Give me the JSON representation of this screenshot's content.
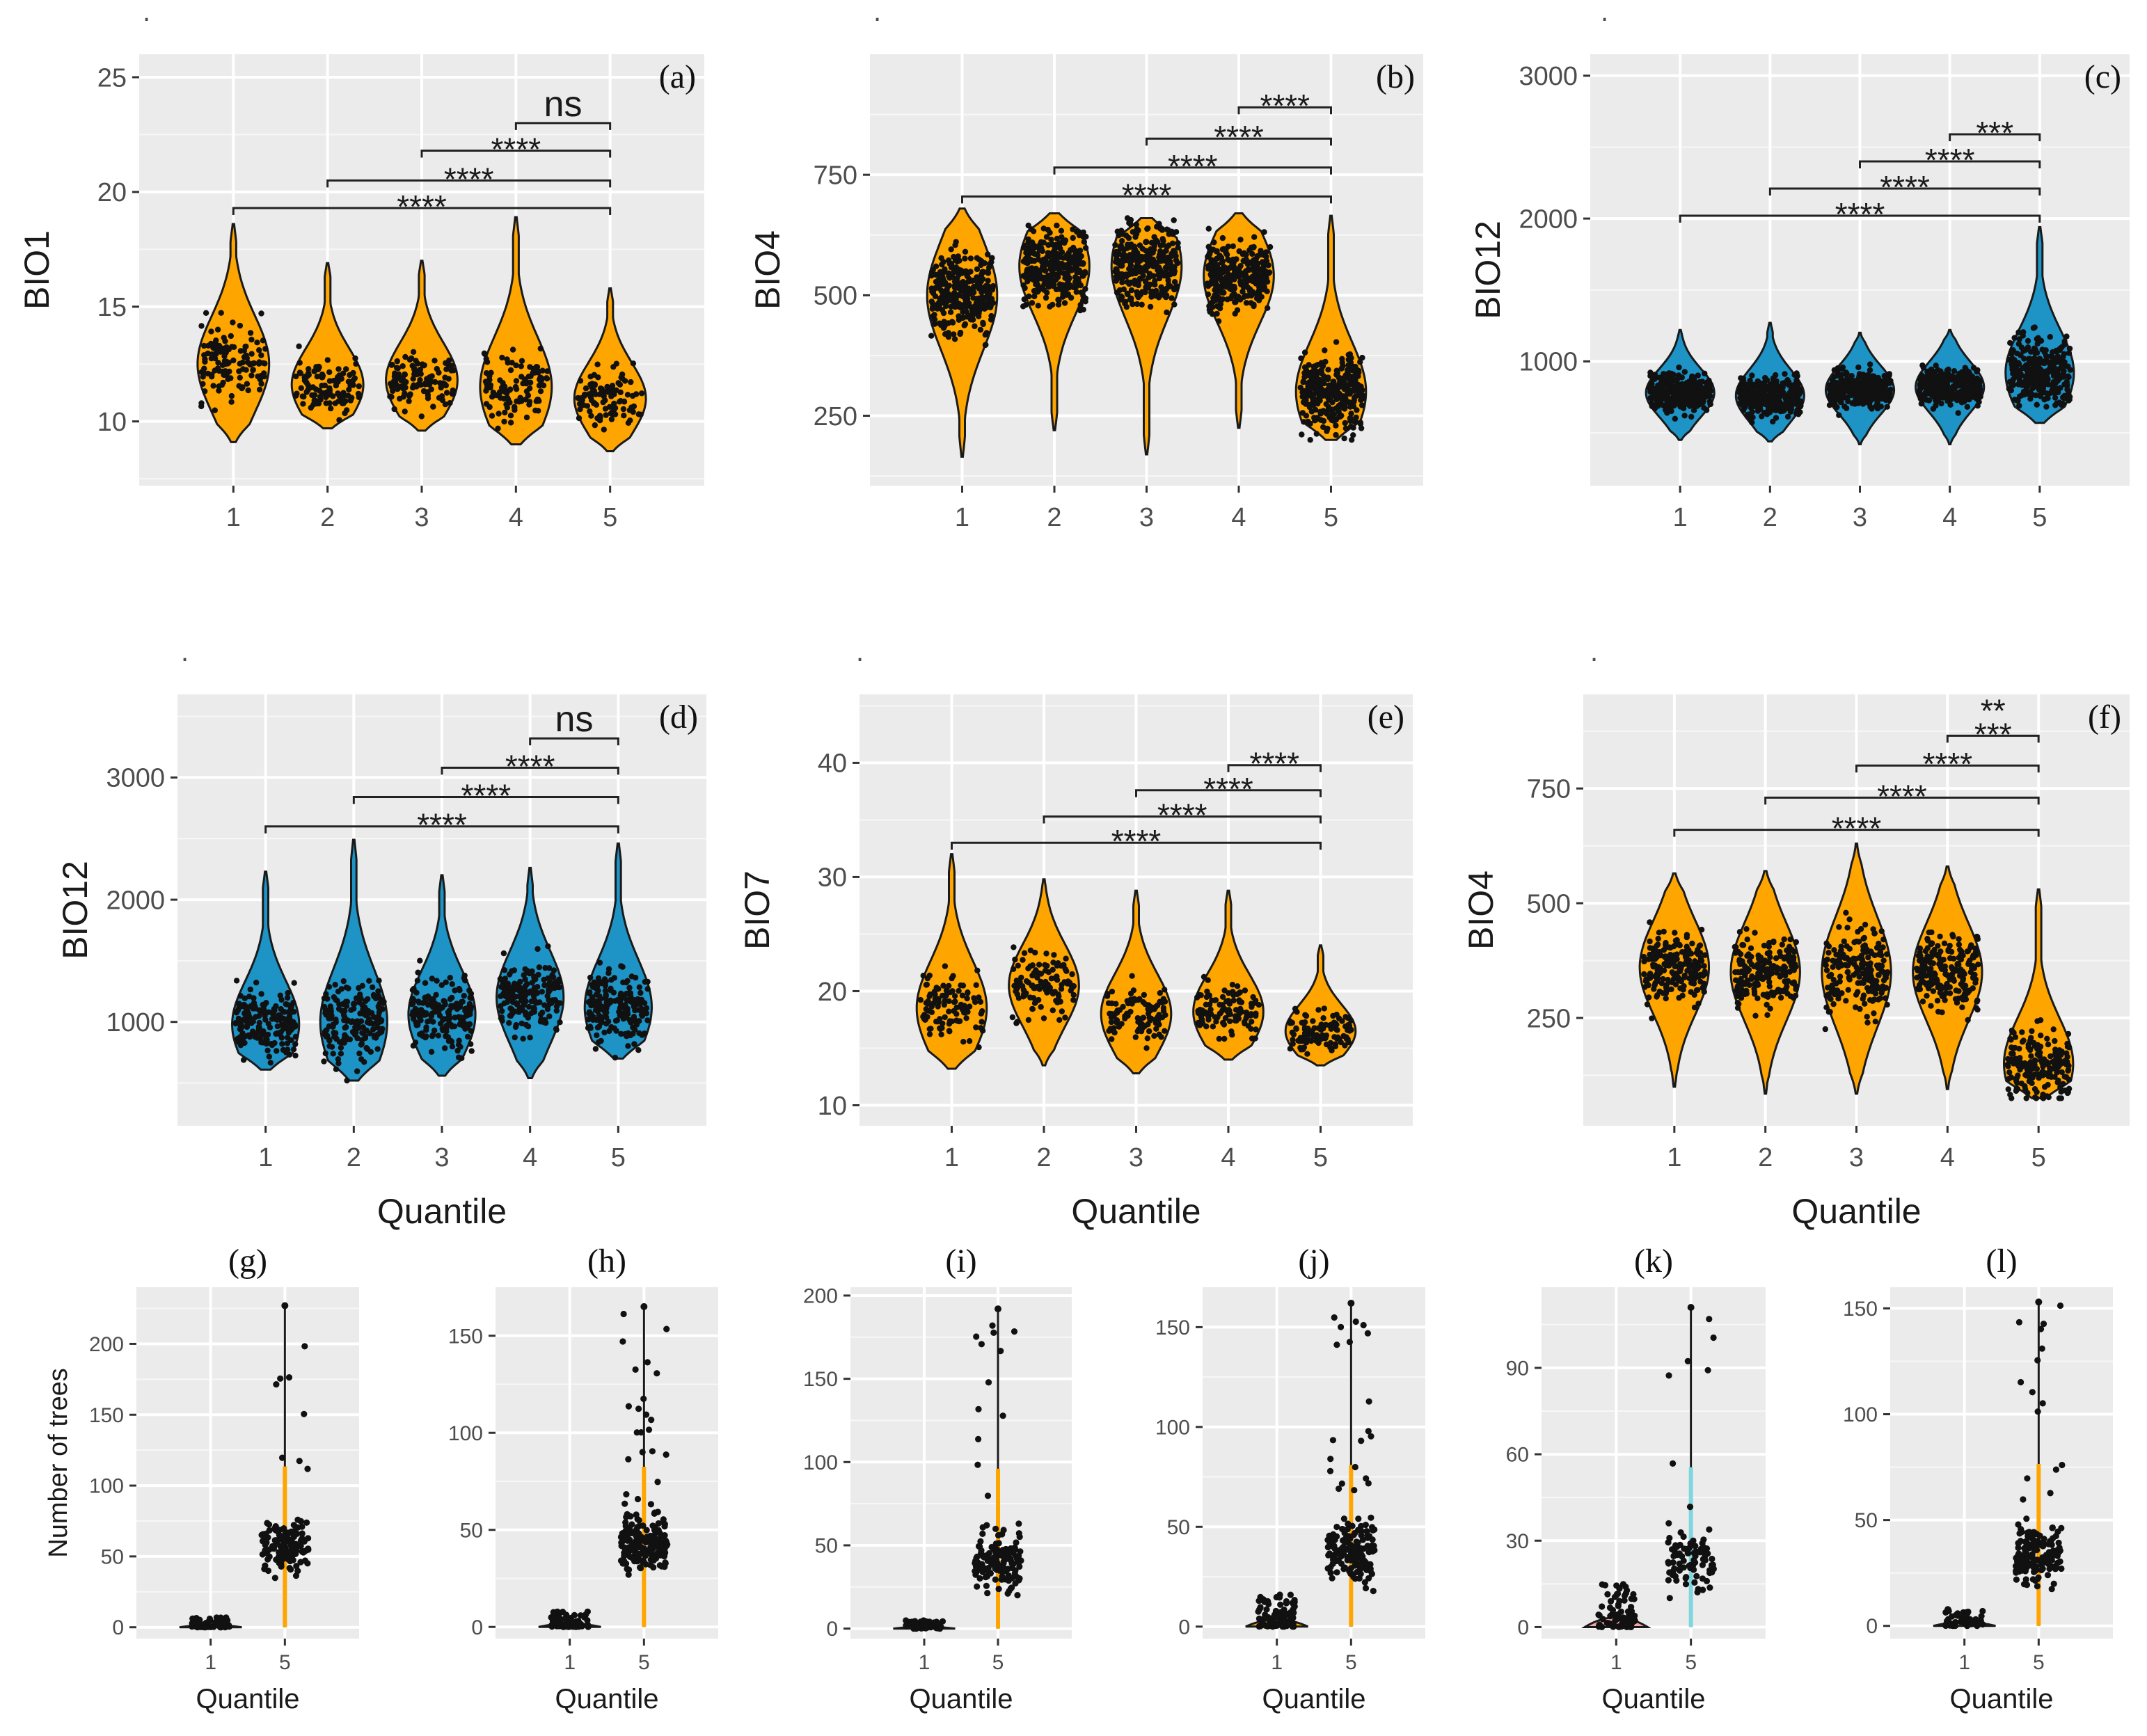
{
  "figure": {
    "bullet": "."
  },
  "colors": {
    "orange": "#ffa500",
    "blue": "#1d93c6",
    "pink": "#f2a7a0",
    "cyan": "#7fd6df"
  },
  "chart_data": [
    {
      "id": "a",
      "type": "violin",
      "tag": "(a)",
      "ylabel": "BIO1",
      "xlabel": "",
      "categories": [
        "1",
        "2",
        "3",
        "4",
        "5"
      ],
      "ylim": [
        7.2,
        26
      ],
      "yticks": [
        10,
        15,
        20,
        25
      ],
      "fill": "orange",
      "groups": [
        {
          "min": 9.1,
          "max": 18.6,
          "mode": 12.5,
          "n": 120
        },
        {
          "min": 9.7,
          "max": 16.9,
          "mode": 11.6,
          "n": 110
        },
        {
          "min": 9.6,
          "max": 17.0,
          "mode": 11.8,
          "n": 110
        },
        {
          "min": 9.0,
          "max": 18.9,
          "mode": 11.5,
          "n": 110
        },
        {
          "min": 8.7,
          "max": 15.8,
          "mode": 11.0,
          "n": 110
        }
      ],
      "comparisons": [
        {
          "from": "1",
          "to": "5",
          "label": "****",
          "y": 19.3
        },
        {
          "from": "2",
          "to": "5",
          "label": "****",
          "y": 20.5
        },
        {
          "from": "3",
          "to": "5",
          "label": "****",
          "y": 21.8
        },
        {
          "from": "4",
          "to": "5",
          "label": "ns",
          "y": 23.0
        }
      ]
    },
    {
      "id": "b",
      "type": "violin",
      "tag": "(b)",
      "ylabel": "BIO4",
      "xlabel": "",
      "categories": [
        "1",
        "2",
        "3",
        "4",
        "5"
      ],
      "ylim": [
        105,
        1000
      ],
      "yticks": [
        250,
        500,
        750
      ],
      "fill": "orange",
      "groups": [
        {
          "min": 165,
          "max": 680,
          "mode": 500,
          "n": 300
        },
        {
          "min": 220,
          "max": 670,
          "mode": 560,
          "n": 300
        },
        {
          "min": 170,
          "max": 660,
          "mode": 560,
          "n": 300
        },
        {
          "min": 225,
          "max": 670,
          "mode": 540,
          "n": 300
        },
        {
          "min": 200,
          "max": 665,
          "mode": 300,
          "n": 300
        }
      ],
      "comparisons": [
        {
          "from": "1",
          "to": "5",
          "label": "****",
          "y": 705
        },
        {
          "from": "2",
          "to": "5",
          "label": "****",
          "y": 765
        },
        {
          "from": "3",
          "to": "5",
          "label": "****",
          "y": 825
        },
        {
          "from": "4",
          "to": "5",
          "label": "****",
          "y": 890
        }
      ]
    },
    {
      "id": "c",
      "type": "violin",
      "tag": "(c)",
      "ylabel": "BIO12",
      "xlabel": "",
      "categories": [
        "1",
        "2",
        "3",
        "4",
        "5"
      ],
      "ylim": [
        130,
        3150
      ],
      "yticks": [
        1000,
        2000,
        3000
      ],
      "fill": "blue",
      "groups": [
        {
          "min": 450,
          "max": 1220,
          "mode": 780,
          "n": 300
        },
        {
          "min": 440,
          "max": 1270,
          "mode": 760,
          "n": 300
        },
        {
          "min": 420,
          "max": 1200,
          "mode": 800,
          "n": 300
        },
        {
          "min": 420,
          "max": 1220,
          "mode": 820,
          "n": 300
        },
        {
          "min": 570,
          "max": 1940,
          "mode": 920,
          "n": 300
        }
      ],
      "comparisons": [
        {
          "from": "1",
          "to": "5",
          "label": "****",
          "y": 2020
        },
        {
          "from": "2",
          "to": "5",
          "label": "****",
          "y": 2210
        },
        {
          "from": "3",
          "to": "5",
          "label": "****",
          "y": 2400
        },
        {
          "from": "4",
          "to": "5",
          "label": "***",
          "y": 2590
        }
      ]
    },
    {
      "id": "d",
      "type": "violin",
      "tag": "(d)",
      "ylabel": "BIO12",
      "xlabel": "Quantile",
      "categories": [
        "1",
        "2",
        "3",
        "4",
        "5"
      ],
      "ylim": [
        150,
        3680
      ],
      "yticks": [
        1000,
        2000,
        3000
      ],
      "fill": "blue",
      "groups": [
        {
          "min": 610,
          "max": 2230,
          "mode": 980,
          "n": 180
        },
        {
          "min": 520,
          "max": 2490,
          "mode": 1000,
          "n": 180
        },
        {
          "min": 560,
          "max": 2200,
          "mode": 1060,
          "n": 180
        },
        {
          "min": 540,
          "max": 2260,
          "mode": 1200,
          "n": 180
        },
        {
          "min": 700,
          "max": 2460,
          "mode": 1120,
          "n": 180
        }
      ],
      "comparisons": [
        {
          "from": "1",
          "to": "5",
          "label": "****",
          "y": 2600
        },
        {
          "from": "2",
          "to": "5",
          "label": "****",
          "y": 2840
        },
        {
          "from": "3",
          "to": "5",
          "label": "****",
          "y": 3080
        },
        {
          "from": "4",
          "to": "5",
          "label": "ns",
          "y": 3320
        }
      ]
    },
    {
      "id": "e",
      "type": "violin",
      "tag": "(e)",
      "ylabel": "BIO7",
      "xlabel": "Quantile",
      "categories": [
        "1",
        "2",
        "3",
        "4",
        "5"
      ],
      "ylim": [
        8.2,
        46
      ],
      "yticks": [
        10,
        20,
        30,
        40
      ],
      "fill": "orange",
      "groups": [
        {
          "min": 13.2,
          "max": 32.0,
          "mode": 18.5,
          "n": 110
        },
        {
          "min": 13.5,
          "max": 29.8,
          "mode": 20.5,
          "n": 110
        },
        {
          "min": 12.8,
          "max": 28.8,
          "mode": 18.0,
          "n": 110
        },
        {
          "min": 14.0,
          "max": 28.8,
          "mode": 18.2,
          "n": 110
        },
        {
          "min": 13.5,
          "max": 24.0,
          "mode": 16.5,
          "n": 110
        }
      ],
      "comparisons": [
        {
          "from": "1",
          "to": "5",
          "label": "****",
          "y": 33.0
        },
        {
          "from": "2",
          "to": "5",
          "label": "****",
          "y": 35.3
        },
        {
          "from": "3",
          "to": "5",
          "label": "****",
          "y": 37.6
        },
        {
          "from": "4",
          "to": "5",
          "label": "****",
          "y": 39.8
        }
      ]
    },
    {
      "id": "f",
      "type": "violin",
      "tag": "(f)",
      "ylabel": "BIO4",
      "xlabel": "Quantile",
      "categories": [
        "1",
        "2",
        "3",
        "4",
        "5"
      ],
      "ylim": [
        15,
        955
      ],
      "yticks": [
        250,
        500,
        750
      ],
      "fill": "orange",
      "groups": [
        {
          "min": 100,
          "max": 565,
          "mode": 360,
          "n": 200
        },
        {
          "min": 85,
          "max": 570,
          "mode": 350,
          "n": 200
        },
        {
          "min": 85,
          "max": 630,
          "mode": 350,
          "n": 200
        },
        {
          "min": 95,
          "max": 580,
          "mode": 350,
          "n": 200
        },
        {
          "min": 75,
          "max": 530,
          "mode": 150,
          "n": 200
        }
      ],
      "comparisons": [
        {
          "from": "1",
          "to": "5",
          "label": "****",
          "y": 660
        },
        {
          "from": "2",
          "to": "5",
          "label": "****",
          "y": 730
        },
        {
          "from": "3",
          "to": "5",
          "label": "****",
          "y": 800
        },
        {
          "from": "4",
          "to": "5",
          "label": "***",
          "y": 865
        }
      ],
      "extra_label": "**"
    },
    {
      "id": "g",
      "type": "strip",
      "tag": "(g)",
      "ylabel": "Number of trees",
      "xlabel": "Quantile",
      "categories": [
        "1",
        "5"
      ],
      "ylim": [
        -8,
        240
      ],
      "yticks": [
        0,
        50,
        100,
        150,
        200
      ],
      "fill1": "orange",
      "fill5": "orange",
      "groups": [
        {
          "min": 0,
          "max": 7,
          "n": 60
        },
        {
          "min": 13,
          "max": 227,
          "n": 130
        }
      ]
    },
    {
      "id": "h",
      "type": "strip",
      "tag": "(h)",
      "ylabel": "",
      "xlabel": "Quantile",
      "categories": [
        "1",
        "5"
      ],
      "ylim": [
        -6,
        175
      ],
      "yticks": [
        0,
        50,
        100,
        150
      ],
      "fill1": "orange",
      "fill5": "orange",
      "groups": [
        {
          "min": 0,
          "max": 8,
          "n": 60
        },
        {
          "min": 12,
          "max": 165,
          "n": 200
        }
      ]
    },
    {
      "id": "i",
      "type": "strip",
      "tag": "(i)",
      "ylabel": "",
      "xlabel": "Quantile",
      "categories": [
        "1",
        "5"
      ],
      "ylim": [
        -6,
        205
      ],
      "yticks": [
        0,
        50,
        100,
        150,
        200
      ],
      "fill1": "orange",
      "fill5": "orange",
      "groups": [
        {
          "min": 0,
          "max": 5,
          "n": 50
        },
        {
          "min": 2,
          "max": 192,
          "n": 150
        }
      ]
    },
    {
      "id": "j",
      "type": "strip",
      "tag": "(j)",
      "ylabel": "",
      "xlabel": "Quantile",
      "categories": [
        "1",
        "5"
      ],
      "ylim": [
        -6,
        170
      ],
      "yticks": [
        0,
        50,
        100,
        150
      ],
      "fill1": "orange",
      "fill5": "orange",
      "groups": [
        {
          "min": 0,
          "max": 16,
          "n": 90
        },
        {
          "min": 6,
          "max": 162,
          "n": 180
        }
      ]
    },
    {
      "id": "k",
      "type": "strip",
      "tag": "(k)",
      "ylabel": "",
      "xlabel": "Quantile",
      "categories": [
        "1",
        "5"
      ],
      "ylim": [
        -4,
        118
      ],
      "yticks": [
        0,
        30,
        60,
        90
      ],
      "fill1": "pink",
      "fill5": "cyan",
      "groups": [
        {
          "min": 0,
          "max": 15,
          "n": 70
        },
        {
          "min": 0,
          "max": 111,
          "n": 90
        }
      ]
    },
    {
      "id": "l",
      "type": "strip",
      "tag": "(l)",
      "ylabel": "",
      "xlabel": "Quantile",
      "categories": [
        "1",
        "5"
      ],
      "ylim": [
        -6,
        160
      ],
      "yticks": [
        0,
        50,
        100,
        150
      ],
      "fill1": "orange",
      "fill5": "orange",
      "groups": [
        {
          "min": 0,
          "max": 8,
          "n": 60
        },
        {
          "min": 3,
          "max": 153,
          "n": 160
        }
      ]
    }
  ]
}
